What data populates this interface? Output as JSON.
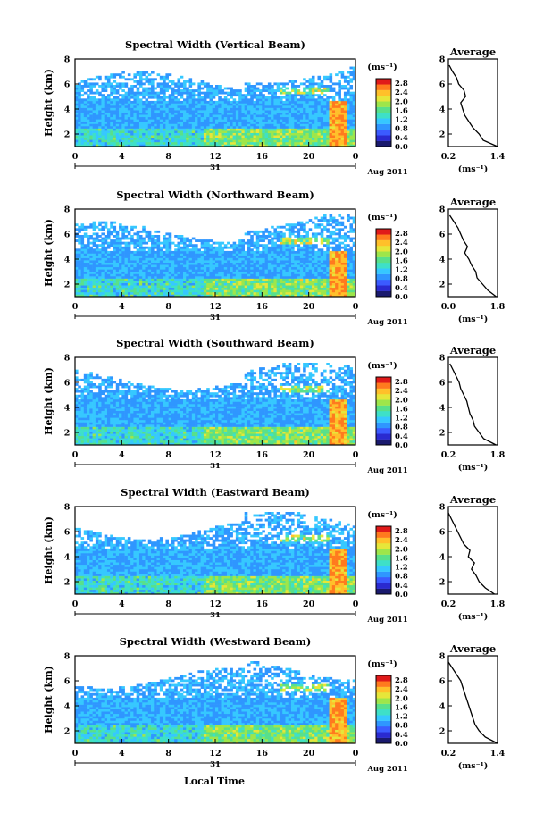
{
  "figure": {
    "xlabel": "Local Time",
    "ylabel": "Height (km)",
    "date_day": "31",
    "date_month": "Aug 2011",
    "colorbar_unit": "(ms⁻¹)",
    "avg_title": "Average",
    "avg_unit": "(ms⁻¹)",
    "colors": {
      "colormap": [
        "#1a1a6e",
        "#2a2ad0",
        "#3b5bff",
        "#2f96ff",
        "#36c8ff",
        "#3ee0c8",
        "#58e08a",
        "#9ee64a",
        "#e6e63a",
        "#ffc02a",
        "#ff7a1e",
        "#e01a1a"
      ]
    }
  },
  "chart_data": [
    {
      "type": "heatmap",
      "title": "Spectral Width (Vertical Beam)",
      "x_ticks": [
        "0",
        "4",
        "8",
        "12",
        "16",
        "20",
        "0"
      ],
      "y_ticks": [
        "2",
        "4",
        "6",
        "8"
      ],
      "xlim": [
        0,
        24
      ],
      "ylim": [
        1,
        8
      ],
      "colorbar_ticks": [
        "0.0",
        "0.4",
        "0.8",
        "1.2",
        "1.6",
        "2.0",
        "2.4",
        "2.8"
      ],
      "clim": [
        0,
        3.0
      ],
      "average": {
        "title": "Average",
        "x_ticks": [
          "0.2",
          "1.4"
        ],
        "xlim": [
          0.2,
          1.4
        ],
        "y_ticks": [
          "2",
          "4",
          "6",
          "8"
        ],
        "ylim": [
          1,
          8
        ],
        "height_km": [
          1.0,
          1.5,
          2.0,
          2.5,
          3.0,
          3.5,
          4.0,
          4.5,
          5.0,
          5.5,
          6.0,
          6.5,
          7.0,
          7.5
        ],
        "width_ms": [
          1.4,
          1.05,
          0.95,
          0.8,
          0.7,
          0.6,
          0.55,
          0.5,
          0.62,
          0.58,
          0.45,
          0.4,
          0.3,
          0.22
        ]
      }
    },
    {
      "type": "heatmap",
      "title": "Spectral Width (Northward Beam)",
      "x_ticks": [
        "0",
        "4",
        "8",
        "12",
        "16",
        "20",
        "0"
      ],
      "y_ticks": [
        "2",
        "4",
        "6",
        "8"
      ],
      "xlim": [
        0,
        24
      ],
      "ylim": [
        1,
        8
      ],
      "colorbar_ticks": [
        "0.0",
        "0.4",
        "0.8",
        "1.2",
        "1.6",
        "2.0",
        "2.4",
        "2.8"
      ],
      "clim": [
        0,
        3.0
      ],
      "average": {
        "title": "Average",
        "x_ticks": [
          "0.0",
          "1.8"
        ],
        "xlim": [
          0.0,
          1.8
        ],
        "y_ticks": [
          "2",
          "4",
          "6",
          "8"
        ],
        "ylim": [
          1,
          8
        ],
        "height_km": [
          1.0,
          1.5,
          2.0,
          2.5,
          3.0,
          3.5,
          4.0,
          4.5,
          5.0,
          5.5,
          6.0,
          6.5,
          7.0,
          7.5
        ],
        "width_ms": [
          1.75,
          1.45,
          1.25,
          1.05,
          1.0,
          0.85,
          0.75,
          0.6,
          0.7,
          0.55,
          0.45,
          0.35,
          0.2,
          0.05
        ]
      }
    },
    {
      "type": "heatmap",
      "title": "Spectral Width (Southward Beam)",
      "x_ticks": [
        "0",
        "4",
        "8",
        "12",
        "16",
        "20",
        "0"
      ],
      "y_ticks": [
        "2",
        "4",
        "6",
        "8"
      ],
      "xlim": [
        0,
        24
      ],
      "ylim": [
        1,
        8
      ],
      "colorbar_ticks": [
        "0.0",
        "0.4",
        "0.8",
        "1.2",
        "1.6",
        "2.0",
        "2.4",
        "2.8"
      ],
      "clim": [
        0,
        3.0
      ],
      "average": {
        "title": "Average",
        "x_ticks": [
          "0.2",
          "1.8"
        ],
        "xlim": [
          0.2,
          1.8
        ],
        "y_ticks": [
          "2",
          "4",
          "6",
          "8"
        ],
        "ylim": [
          1,
          8
        ],
        "height_km": [
          1.0,
          1.5,
          2.0,
          2.5,
          3.0,
          3.5,
          4.0,
          4.5,
          5.0,
          5.5,
          6.0,
          6.5,
          7.0,
          7.5
        ],
        "width_ms": [
          1.75,
          1.35,
          1.2,
          1.05,
          1.0,
          0.9,
          0.85,
          0.8,
          0.7,
          0.6,
          0.55,
          0.45,
          0.35,
          0.25
        ]
      }
    },
    {
      "type": "heatmap",
      "title": "Spectral Width (Eastward Beam)",
      "x_ticks": [
        "0",
        "4",
        "8",
        "12",
        "16",
        "20",
        "0"
      ],
      "y_ticks": [
        "2",
        "4",
        "6",
        "8"
      ],
      "xlim": [
        0,
        24
      ],
      "ylim": [
        1,
        8
      ],
      "colorbar_ticks": [
        "0.0",
        "0.4",
        "0.8",
        "1.2",
        "1.6",
        "2.0",
        "2.4",
        "2.8"
      ],
      "clim": [
        0,
        3.0
      ],
      "average": {
        "title": "Average",
        "x_ticks": [
          "0.2",
          "1.8"
        ],
        "xlim": [
          0.2,
          1.8
        ],
        "y_ticks": [
          "2",
          "4",
          "6",
          "8"
        ],
        "ylim": [
          1,
          8
        ],
        "height_km": [
          1.0,
          1.5,
          2.0,
          2.5,
          3.0,
          3.5,
          4.0,
          4.5,
          5.0,
          5.5,
          6.0,
          6.5,
          7.0,
          7.5
        ],
        "width_ms": [
          1.7,
          1.4,
          1.2,
          1.1,
          0.95,
          1.05,
          0.85,
          0.9,
          0.7,
          0.6,
          0.5,
          0.4,
          0.3,
          0.2
        ]
      }
    },
    {
      "type": "heatmap",
      "title": "Spectral Width (Westward Beam)",
      "x_ticks": [
        "0",
        "4",
        "8",
        "12",
        "16",
        "20",
        "0"
      ],
      "y_ticks": [
        "2",
        "4",
        "6",
        "8"
      ],
      "xlim": [
        0,
        24
      ],
      "ylim": [
        1,
        8
      ],
      "colorbar_ticks": [
        "0.0",
        "0.4",
        "0.8",
        "1.2",
        "1.6",
        "2.0",
        "2.4",
        "2.8"
      ],
      "clim": [
        0,
        3.0
      ],
      "average": {
        "title": "Average",
        "x_ticks": [
          "0.2",
          "1.4"
        ],
        "xlim": [
          0.2,
          1.4
        ],
        "y_ticks": [
          "2",
          "4",
          "6",
          "8"
        ],
        "ylim": [
          1,
          8
        ],
        "height_km": [
          1.0,
          1.5,
          2.0,
          2.5,
          3.0,
          3.5,
          4.0,
          4.5,
          5.0,
          5.5,
          6.0,
          6.5,
          7.0,
          7.5
        ],
        "width_ms": [
          1.4,
          1.1,
          0.95,
          0.85,
          0.8,
          0.75,
          0.7,
          0.65,
          0.6,
          0.55,
          0.5,
          0.4,
          0.3,
          0.2
        ]
      }
    }
  ]
}
